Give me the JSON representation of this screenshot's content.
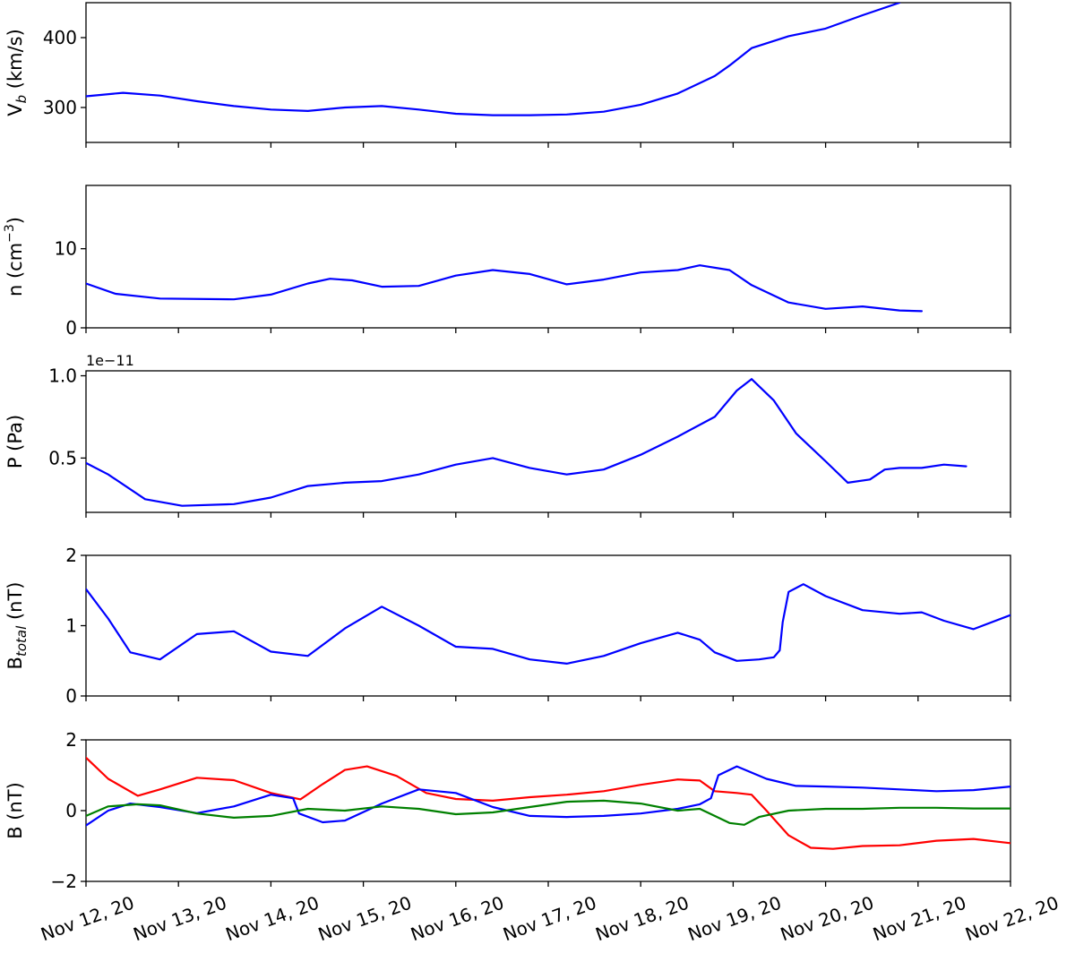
{
  "chart_data": [
    {
      "type": "line",
      "ylabel": "V",
      "ylabel_sub": "b",
      "ylabel_suffix": " (km/s)",
      "ylim": [
        250,
        450
      ],
      "yticks": [
        {
          "label": "300",
          "value": 300
        },
        {
          "label": "400",
          "value": 400
        }
      ],
      "series": [
        {
          "color": "#0000ff",
          "points": [
            [
              0,
              316
            ],
            [
              0.5,
              321
            ],
            [
              1,
              317
            ],
            [
              1.5,
              309
            ],
            [
              2,
              302
            ],
            [
              2.5,
              297
            ],
            [
              3,
              295
            ],
            [
              3.5,
              300
            ],
            [
              4,
              302
            ],
            [
              4.5,
              297
            ],
            [
              5,
              291
            ],
            [
              5.5,
              289
            ],
            [
              6,
              289
            ],
            [
              6.5,
              290
            ],
            [
              7,
              294
            ],
            [
              7.5,
              304
            ],
            [
              8,
              320
            ],
            [
              8.5,
              345
            ],
            [
              8.7,
              360
            ],
            [
              9,
              385
            ],
            [
              9.5,
              402
            ],
            [
              10,
              413
            ],
            [
              10.5,
              432
            ],
            [
              11,
              450
            ]
          ]
        }
      ]
    },
    {
      "type": "line",
      "ylabel": "n (cm",
      "ylabel_sup": "−3",
      "ylabel_suffix": ")",
      "ylim": [
        0,
        18
      ],
      "yticks": [
        {
          "label": "0",
          "value": 0
        },
        {
          "label": "10",
          "value": 10
        }
      ],
      "series": [
        {
          "color": "#0000ff",
          "points": [
            [
              0,
              5.6
            ],
            [
              0.4,
              4.3
            ],
            [
              1,
              3.7
            ],
            [
              2,
              3.6
            ],
            [
              2.5,
              4.2
            ],
            [
              3,
              5.6
            ],
            [
              3.3,
              6.2
            ],
            [
              3.6,
              6.0
            ],
            [
              4,
              5.2
            ],
            [
              4.5,
              5.3
            ],
            [
              5,
              6.6
            ],
            [
              5.5,
              7.3
            ],
            [
              6,
              6.8
            ],
            [
              6.5,
              5.5
            ],
            [
              7,
              6.1
            ],
            [
              7.5,
              7.0
            ],
            [
              8,
              7.3
            ],
            [
              8.3,
              7.9
            ],
            [
              8.7,
              7.3
            ],
            [
              9,
              5.4
            ],
            [
              9.5,
              3.2
            ],
            [
              10,
              2.4
            ],
            [
              10.5,
              2.7
            ],
            [
              11,
              2.2
            ],
            [
              11.3,
              2.1
            ]
          ]
        }
      ]
    },
    {
      "type": "line",
      "ylabel": "P (Pa)",
      "exponent_label": "1e−11",
      "ylim": [
        0.17,
        1.03
      ],
      "yticks": [
        {
          "label": "0.5",
          "value": 0.5
        },
        {
          "label": "1.0",
          "value": 1.0
        }
      ],
      "series": [
        {
          "color": "#0000ff",
          "points": [
            [
              0,
              0.47
            ],
            [
              0.3,
              0.4
            ],
            [
              0.8,
              0.25
            ],
            [
              1.3,
              0.21
            ],
            [
              2,
              0.22
            ],
            [
              2.5,
              0.26
            ],
            [
              3,
              0.33
            ],
            [
              3.5,
              0.35
            ],
            [
              4,
              0.36
            ],
            [
              4.5,
              0.4
            ],
            [
              5,
              0.46
            ],
            [
              5.5,
              0.5
            ],
            [
              6,
              0.44
            ],
            [
              6.5,
              0.4
            ],
            [
              7,
              0.43
            ],
            [
              7.5,
              0.52
            ],
            [
              8,
              0.63
            ],
            [
              8.5,
              0.75
            ],
            [
              8.8,
              0.91
            ],
            [
              9,
              0.98
            ],
            [
              9.3,
              0.85
            ],
            [
              9.6,
              0.65
            ],
            [
              10,
              0.48
            ],
            [
              10.3,
              0.35
            ],
            [
              10.6,
              0.37
            ],
            [
              10.8,
              0.43
            ],
            [
              11,
              0.44
            ],
            [
              11.3,
              0.44
            ],
            [
              11.6,
              0.46
            ],
            [
              11.9,
              0.45
            ]
          ]
        }
      ]
    },
    {
      "type": "line",
      "ylabel": "B",
      "ylabel_sub": "total",
      "ylabel_suffix": " (nT)",
      "ylim": [
        0,
        2
      ],
      "yticks": [
        {
          "label": "0",
          "value": 0
        },
        {
          "label": "1",
          "value": 1
        },
        {
          "label": "2",
          "value": 2
        }
      ],
      "series": [
        {
          "color": "#0000ff",
          "points": [
            [
              0,
              1.52
            ],
            [
              0.3,
              1.1
            ],
            [
              0.6,
              0.62
            ],
            [
              1,
              0.52
            ],
            [
              1.5,
              0.88
            ],
            [
              2,
              0.92
            ],
            [
              2.5,
              0.63
            ],
            [
              3,
              0.57
            ],
            [
              3.5,
              0.96
            ],
            [
              4,
              1.27
            ],
            [
              4.5,
              1.0
            ],
            [
              5,
              0.7
            ],
            [
              5.5,
              0.67
            ],
            [
              6,
              0.52
            ],
            [
              6.5,
              0.46
            ],
            [
              7,
              0.57
            ],
            [
              7.5,
              0.75
            ],
            [
              8,
              0.9
            ],
            [
              8.3,
              0.8
            ],
            [
              8.5,
              0.62
            ],
            [
              8.8,
              0.5
            ],
            [
              9.1,
              0.52
            ],
            [
              9.3,
              0.55
            ],
            [
              9.38,
              0.65
            ],
            [
              9.42,
              1.05
            ],
            [
              9.5,
              1.48
            ],
            [
              9.7,
              1.59
            ],
            [
              10,
              1.42
            ],
            [
              10.5,
              1.22
            ],
            [
              11,
              1.17
            ],
            [
              11.3,
              1.19
            ],
            [
              11.6,
              1.07
            ],
            [
              12,
              0.95
            ],
            [
              12.5,
              1.15
            ]
          ]
        }
      ]
    },
    {
      "type": "line",
      "ylabel": "B (nT)",
      "ylim": [
        -2,
        2
      ],
      "yticks": [
        {
          "label": "−2",
          "value": -2
        },
        {
          "label": "0",
          "value": 0
        },
        {
          "label": "2",
          "value": 2
        }
      ],
      "x_ticks": [
        "Nov 12, 20",
        "Nov 13, 20",
        "Nov 14, 20",
        "Nov 15, 20",
        "Nov 16, 20",
        "Nov 17, 20",
        "Nov 18, 20",
        "Nov 19, 20",
        "Nov 20, 20",
        "Nov 21, 20",
        "Nov 22, 20"
      ],
      "series": [
        {
          "color": "#ff0000",
          "points": [
            [
              0,
              1.5
            ],
            [
              0.3,
              0.9
            ],
            [
              0.7,
              0.42
            ],
            [
              1,
              0.6
            ],
            [
              1.5,
              0.93
            ],
            [
              2,
              0.86
            ],
            [
              2.5,
              0.5
            ],
            [
              2.9,
              0.32
            ],
            [
              3.2,
              0.75
            ],
            [
              3.5,
              1.15
            ],
            [
              3.8,
              1.25
            ],
            [
              4.2,
              0.98
            ],
            [
              4.6,
              0.5
            ],
            [
              5,
              0.33
            ],
            [
              5.5,
              0.28
            ],
            [
              6,
              0.38
            ],
            [
              6.5,
              0.45
            ],
            [
              7,
              0.55
            ],
            [
              7.5,
              0.73
            ],
            [
              8,
              0.88
            ],
            [
              8.3,
              0.85
            ],
            [
              8.5,
              0.55
            ],
            [
              8.8,
              0.5
            ],
            [
              9,
              0.45
            ],
            [
              9.2,
              0.0
            ],
            [
              9.5,
              -0.7
            ],
            [
              9.8,
              -1.05
            ],
            [
              10.1,
              -1.08
            ],
            [
              10.5,
              -1.0
            ],
            [
              11,
              -0.98
            ],
            [
              11.5,
              -0.85
            ],
            [
              12,
              -0.8
            ],
            [
              12.5,
              -0.92
            ]
          ]
        },
        {
          "color": "#0000ff",
          "points": [
            [
              0,
              -0.42
            ],
            [
              0.3,
              0.0
            ],
            [
              0.6,
              0.2
            ],
            [
              1,
              0.1
            ],
            [
              1.5,
              -0.07
            ],
            [
              2,
              0.12
            ],
            [
              2.5,
              0.45
            ],
            [
              2.8,
              0.35
            ],
            [
              2.88,
              -0.08
            ],
            [
              3.2,
              -0.33
            ],
            [
              3.5,
              -0.28
            ],
            [
              4,
              0.2
            ],
            [
              4.5,
              0.6
            ],
            [
              5,
              0.5
            ],
            [
              5.5,
              0.1
            ],
            [
              6,
              -0.15
            ],
            [
              6.5,
              -0.18
            ],
            [
              7,
              -0.15
            ],
            [
              7.5,
              -0.08
            ],
            [
              8,
              0.05
            ],
            [
              8.3,
              0.18
            ],
            [
              8.45,
              0.35
            ],
            [
              8.55,
              1.0
            ],
            [
              8.8,
              1.25
            ],
            [
              9.2,
              0.9
            ],
            [
              9.6,
              0.7
            ],
            [
              10,
              0.68
            ],
            [
              10.5,
              0.65
            ],
            [
              11,
              0.6
            ],
            [
              11.5,
              0.55
            ],
            [
              12,
              0.58
            ],
            [
              12.5,
              0.68
            ]
          ]
        },
        {
          "color": "#008000",
          "points": [
            [
              0,
              -0.15
            ],
            [
              0.3,
              0.12
            ],
            [
              0.7,
              0.18
            ],
            [
              1,
              0.15
            ],
            [
              1.5,
              -0.08
            ],
            [
              2,
              -0.2
            ],
            [
              2.5,
              -0.15
            ],
            [
              3,
              0.05
            ],
            [
              3.5,
              0.0
            ],
            [
              4,
              0.12
            ],
            [
              4.5,
              0.05
            ],
            [
              5,
              -0.1
            ],
            [
              5.5,
              -0.05
            ],
            [
              6,
              0.1
            ],
            [
              6.5,
              0.25
            ],
            [
              7,
              0.28
            ],
            [
              7.5,
              0.2
            ],
            [
              8,
              0.0
            ],
            [
              8.3,
              0.05
            ],
            [
              8.5,
              -0.15
            ],
            [
              8.7,
              -0.35
            ],
            [
              8.9,
              -0.4
            ],
            [
              9.1,
              -0.18
            ],
            [
              9.5,
              0.0
            ],
            [
              10,
              0.05
            ],
            [
              10.5,
              0.05
            ],
            [
              11,
              0.08
            ],
            [
              11.5,
              0.08
            ],
            [
              12,
              0.06
            ],
            [
              12.5,
              0.06
            ]
          ]
        }
      ]
    }
  ]
}
